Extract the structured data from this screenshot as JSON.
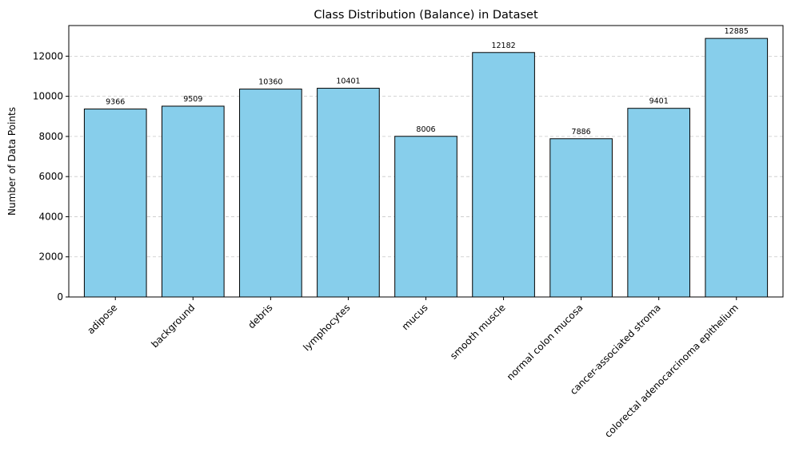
{
  "chart_data": {
    "type": "bar",
    "title": "Class Distribution (Balance) in Dataset",
    "xlabel": "",
    "ylabel": "Number of Data Points",
    "categories": [
      "adipose",
      "background",
      "debris",
      "lymphocytes",
      "mucus",
      "smooth muscle",
      "normal colon mucosa",
      "cancer-associated stroma",
      "colorectal adenocarcinoma epithelium"
    ],
    "values": [
      9366,
      9509,
      10360,
      10401,
      8006,
      12182,
      7886,
      9401,
      12885
    ],
    "ylim": [
      0,
      13526
    ],
    "yticks": [
      0,
      2000,
      4000,
      6000,
      8000,
      10000,
      12000
    ],
    "grid": "y-dashed",
    "bar_color": "#87ceeb",
    "bar_edge_color": "#000000"
  }
}
